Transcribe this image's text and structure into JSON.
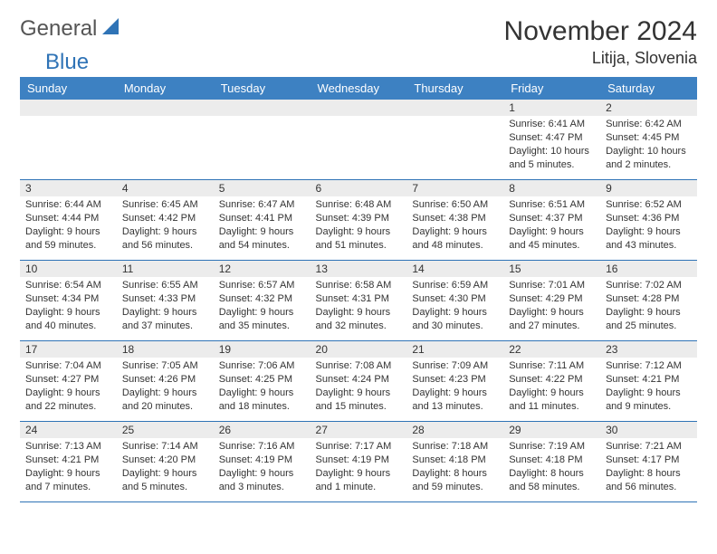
{
  "logo": {
    "gray": "General",
    "blue": "Blue"
  },
  "title": "November 2024",
  "location": "Litija, Slovenia",
  "colors": {
    "header_bg": "#3d81c2",
    "header_text": "#ffffff",
    "border": "#2f73b6",
    "daynum_bg": "#ececec",
    "text": "#333333",
    "logo_gray": "#555555"
  },
  "weekdays": [
    "Sunday",
    "Monday",
    "Tuesday",
    "Wednesday",
    "Thursday",
    "Friday",
    "Saturday"
  ],
  "weeks": [
    [
      {
        "n": "",
        "sr": "",
        "ss": "",
        "dl": ""
      },
      {
        "n": "",
        "sr": "",
        "ss": "",
        "dl": ""
      },
      {
        "n": "",
        "sr": "",
        "ss": "",
        "dl": ""
      },
      {
        "n": "",
        "sr": "",
        "ss": "",
        "dl": ""
      },
      {
        "n": "",
        "sr": "",
        "ss": "",
        "dl": ""
      },
      {
        "n": "1",
        "sr": "Sunrise: 6:41 AM",
        "ss": "Sunset: 4:47 PM",
        "dl": "Daylight: 10 hours and 5 minutes."
      },
      {
        "n": "2",
        "sr": "Sunrise: 6:42 AM",
        "ss": "Sunset: 4:45 PM",
        "dl": "Daylight: 10 hours and 2 minutes."
      }
    ],
    [
      {
        "n": "3",
        "sr": "Sunrise: 6:44 AM",
        "ss": "Sunset: 4:44 PM",
        "dl": "Daylight: 9 hours and 59 minutes."
      },
      {
        "n": "4",
        "sr": "Sunrise: 6:45 AM",
        "ss": "Sunset: 4:42 PM",
        "dl": "Daylight: 9 hours and 56 minutes."
      },
      {
        "n": "5",
        "sr": "Sunrise: 6:47 AM",
        "ss": "Sunset: 4:41 PM",
        "dl": "Daylight: 9 hours and 54 minutes."
      },
      {
        "n": "6",
        "sr": "Sunrise: 6:48 AM",
        "ss": "Sunset: 4:39 PM",
        "dl": "Daylight: 9 hours and 51 minutes."
      },
      {
        "n": "7",
        "sr": "Sunrise: 6:50 AM",
        "ss": "Sunset: 4:38 PM",
        "dl": "Daylight: 9 hours and 48 minutes."
      },
      {
        "n": "8",
        "sr": "Sunrise: 6:51 AM",
        "ss": "Sunset: 4:37 PM",
        "dl": "Daylight: 9 hours and 45 minutes."
      },
      {
        "n": "9",
        "sr": "Sunrise: 6:52 AM",
        "ss": "Sunset: 4:36 PM",
        "dl": "Daylight: 9 hours and 43 minutes."
      }
    ],
    [
      {
        "n": "10",
        "sr": "Sunrise: 6:54 AM",
        "ss": "Sunset: 4:34 PM",
        "dl": "Daylight: 9 hours and 40 minutes."
      },
      {
        "n": "11",
        "sr": "Sunrise: 6:55 AM",
        "ss": "Sunset: 4:33 PM",
        "dl": "Daylight: 9 hours and 37 minutes."
      },
      {
        "n": "12",
        "sr": "Sunrise: 6:57 AM",
        "ss": "Sunset: 4:32 PM",
        "dl": "Daylight: 9 hours and 35 minutes."
      },
      {
        "n": "13",
        "sr": "Sunrise: 6:58 AM",
        "ss": "Sunset: 4:31 PM",
        "dl": "Daylight: 9 hours and 32 minutes."
      },
      {
        "n": "14",
        "sr": "Sunrise: 6:59 AM",
        "ss": "Sunset: 4:30 PM",
        "dl": "Daylight: 9 hours and 30 minutes."
      },
      {
        "n": "15",
        "sr": "Sunrise: 7:01 AM",
        "ss": "Sunset: 4:29 PM",
        "dl": "Daylight: 9 hours and 27 minutes."
      },
      {
        "n": "16",
        "sr": "Sunrise: 7:02 AM",
        "ss": "Sunset: 4:28 PM",
        "dl": "Daylight: 9 hours and 25 minutes."
      }
    ],
    [
      {
        "n": "17",
        "sr": "Sunrise: 7:04 AM",
        "ss": "Sunset: 4:27 PM",
        "dl": "Daylight: 9 hours and 22 minutes."
      },
      {
        "n": "18",
        "sr": "Sunrise: 7:05 AM",
        "ss": "Sunset: 4:26 PM",
        "dl": "Daylight: 9 hours and 20 minutes."
      },
      {
        "n": "19",
        "sr": "Sunrise: 7:06 AM",
        "ss": "Sunset: 4:25 PM",
        "dl": "Daylight: 9 hours and 18 minutes."
      },
      {
        "n": "20",
        "sr": "Sunrise: 7:08 AM",
        "ss": "Sunset: 4:24 PM",
        "dl": "Daylight: 9 hours and 15 minutes."
      },
      {
        "n": "21",
        "sr": "Sunrise: 7:09 AM",
        "ss": "Sunset: 4:23 PM",
        "dl": "Daylight: 9 hours and 13 minutes."
      },
      {
        "n": "22",
        "sr": "Sunrise: 7:11 AM",
        "ss": "Sunset: 4:22 PM",
        "dl": "Daylight: 9 hours and 11 minutes."
      },
      {
        "n": "23",
        "sr": "Sunrise: 7:12 AM",
        "ss": "Sunset: 4:21 PM",
        "dl": "Daylight: 9 hours and 9 minutes."
      }
    ],
    [
      {
        "n": "24",
        "sr": "Sunrise: 7:13 AM",
        "ss": "Sunset: 4:21 PM",
        "dl": "Daylight: 9 hours and 7 minutes."
      },
      {
        "n": "25",
        "sr": "Sunrise: 7:14 AM",
        "ss": "Sunset: 4:20 PM",
        "dl": "Daylight: 9 hours and 5 minutes."
      },
      {
        "n": "26",
        "sr": "Sunrise: 7:16 AM",
        "ss": "Sunset: 4:19 PM",
        "dl": "Daylight: 9 hours and 3 minutes."
      },
      {
        "n": "27",
        "sr": "Sunrise: 7:17 AM",
        "ss": "Sunset: 4:19 PM",
        "dl": "Daylight: 9 hours and 1 minute."
      },
      {
        "n": "28",
        "sr": "Sunrise: 7:18 AM",
        "ss": "Sunset: 4:18 PM",
        "dl": "Daylight: 8 hours and 59 minutes."
      },
      {
        "n": "29",
        "sr": "Sunrise: 7:19 AM",
        "ss": "Sunset: 4:18 PM",
        "dl": "Daylight: 8 hours and 58 minutes."
      },
      {
        "n": "30",
        "sr": "Sunrise: 7:21 AM",
        "ss": "Sunset: 4:17 PM",
        "dl": "Daylight: 8 hours and 56 minutes."
      }
    ]
  ]
}
